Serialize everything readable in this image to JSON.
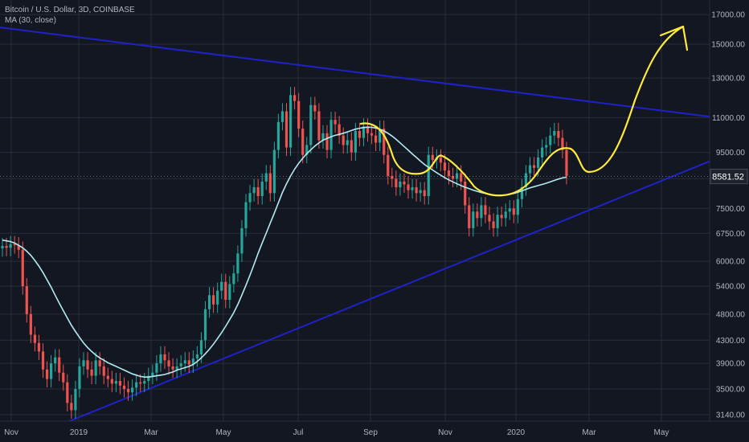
{
  "legend": {
    "symbol_line": "Bitcoin / U.S. Dollar, 3D, COINBASE",
    "indicator_line": "MA (30, close)"
  },
  "colors": {
    "background": "#131722",
    "grid": "#2a2e39",
    "up_candle": "#26a69a",
    "down_candle": "#ef5350",
    "ma_line": "#b2ebf2",
    "trendline": "#1e22c8",
    "projection": "#ffeb3b",
    "price_tag_bg": "#1e222d"
  },
  "chart_data": {
    "type": "candlestick",
    "symbol": "Bitcoin / U.S. Dollar",
    "interval": "3D",
    "exchange": "COINBASE",
    "y_scale": "log",
    "ylim": [
      3050,
      18500
    ],
    "y_ticks": [
      "17000.00",
      "15000.00",
      "13000.00",
      "11000.00",
      "9500.00",
      "8500.00",
      "7500.00",
      "6750.00",
      "6000.00",
      "5400.00",
      "4800.00",
      "4300.00",
      "3900.00",
      "3500.00",
      "3140.00"
    ],
    "x_tick_labels": [
      "Nov",
      "2019",
      "Mar",
      "May",
      "Jul",
      "Sep",
      "Nov",
      "2020",
      "Mar",
      "May"
    ],
    "last_price": "8581.52",
    "candles_close": [
      6400,
      6350,
      6450,
      6420,
      6300,
      5400,
      4800,
      4400,
      4250,
      4100,
      3800,
      3650,
      3900,
      4000,
      3750,
      3600,
      3300,
      3200,
      3500,
      3850,
      3950,
      3800,
      3700,
      3950,
      3850,
      3700,
      3650,
      3580,
      3620,
      3550,
      3500,
      3450,
      3520,
      3600,
      3580,
      3620,
      3700,
      3750,
      3900,
      4050,
      3950,
      3850,
      3800,
      3850,
      3900,
      3950,
      3880,
      3980,
      4050,
      4300,
      4900,
      5200,
      5000,
      5300,
      5500,
      5100,
      5450,
      5700,
      6200,
      6900,
      7700,
      8000,
      8200,
      7900,
      8400,
      8700,
      8000,
      9600,
      10800,
      11300,
      9700,
      12100,
      11800,
      10500,
      9400,
      9800,
      11600,
      11300,
      10000,
      10300,
      9600,
      10900,
      10700,
      10200,
      9800,
      10000,
      9500,
      10400,
      10100,
      10600,
      10300,
      10200,
      9900,
      10500,
      9400,
      8600,
      8500,
      8200,
      8400,
      8300,
      8100,
      8200,
      8000,
      8100,
      7900,
      9400,
      9200,
      9300,
      9100,
      8800,
      8600,
      8500,
      8700,
      8400,
      7600,
      6900,
      7400,
      7200,
      7600,
      7300,
      7100,
      6900,
      7300,
      7200,
      7400,
      7500,
      7300,
      7800,
      8200,
      8700,
      9000,
      8900,
      9300,
      9700,
      9800,
      10200,
      10400,
      10100,
      9600,
      8600
    ],
    "ma30": [
      6560,
      6540,
      6520,
      6480,
      6420,
      6350,
      6260,
      6150,
      6020,
      5880,
      5720,
      5550,
      5380,
      5200,
      5030,
      4870,
      4720,
      4580,
      4460,
      4350,
      4250,
      4170,
      4100,
      4040,
      3990,
      3950,
      3910,
      3880,
      3850,
      3820,
      3790,
      3760,
      3730,
      3710,
      3690,
      3680,
      3680,
      3690,
      3700,
      3710,
      3720,
      3740,
      3760,
      3790,
      3810,
      3830,
      3850,
      3880,
      3930,
      3990,
      4060,
      4140,
      4230,
      4330,
      4440,
      4560,
      4690,
      4830,
      5000,
      5200,
      5420,
      5660,
      5920,
      6200,
      6480,
      6760,
      7050,
      7350,
      7680,
      8020,
      8320,
      8600,
      8850,
      9070,
      9270,
      9450,
      9610,
      9760,
      9890,
      10000,
      10080,
      10150,
      10210,
      10250,
      10300,
      10360,
      10420,
      10480,
      10520,
      10550,
      10570,
      10560,
      10530,
      10480,
      10400,
      10300,
      10180,
      10040,
      9890,
      9740,
      9590,
      9440,
      9300,
      9160,
      9030,
      8920,
      8820,
      8720,
      8630,
      8540,
      8460,
      8390,
      8320,
      8260,
      8200,
      8150,
      8100,
      8060,
      8020,
      7990,
      7960,
      7940,
      7930,
      7930,
      7940,
      7960,
      7990,
      8030,
      8080,
      8130,
      8180,
      8220,
      8260,
      8300,
      8340,
      8390,
      8440,
      8490,
      8530,
      8560
    ]
  }
}
